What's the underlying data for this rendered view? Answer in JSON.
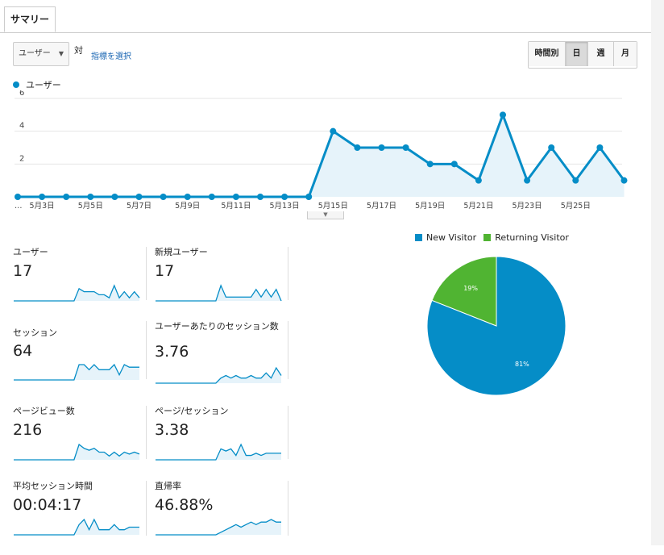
{
  "tabs": {
    "summary": "サマリー"
  },
  "toolbar": {
    "metric_select": "ユーザー",
    "vs": "対",
    "choose_metric": "指標を選択",
    "ranges": [
      "時間別",
      "日",
      "週",
      "月"
    ],
    "active_range": "日"
  },
  "colors": {
    "line": "#058dc7",
    "new_visitor": "#058dc7",
    "returning_visitor": "#50b432"
  },
  "chart_data": [
    {
      "type": "area",
      "series": [
        {
          "name": "ユーザー",
          "values": [
            0,
            0,
            0,
            0,
            0,
            0,
            0,
            0,
            0,
            0,
            0,
            0,
            0,
            4,
            3,
            3,
            3,
            2,
            2,
            1,
            5,
            1,
            3,
            1,
            3,
            1
          ]
        }
      ],
      "x_tick_labels": [
        "…",
        "5月3日",
        "5月5日",
        "5月7日",
        "5月9日",
        "5月11日",
        "5月13日",
        "5月15日",
        "5月17日",
        "5月19日",
        "5月21日",
        "5月23日",
        "5月25日"
      ],
      "y_ticks": [
        "2",
        "4",
        "6"
      ],
      "ylim": [
        0,
        6
      ],
      "grid": true,
      "legend": "top-left"
    },
    {
      "type": "pie",
      "labels": [
        "New Visitor",
        "Returning Visitor"
      ],
      "values": [
        81,
        19
      ],
      "slice_labels": [
        "81%",
        "19%"
      ],
      "legend": "top"
    }
  ],
  "metrics": [
    {
      "label": "ユーザー",
      "value": "17",
      "spark": [
        0,
        0,
        0,
        0,
        0,
        0,
        0,
        0,
        0,
        0,
        0,
        0,
        0,
        4,
        3,
        3,
        3,
        2,
        2,
        1,
        5,
        1,
        3,
        1,
        3,
        1
      ]
    },
    {
      "label": "新規ユーザー",
      "value": "17",
      "spark": [
        0,
        0,
        0,
        0,
        0,
        0,
        0,
        0,
        0,
        0,
        0,
        0,
        0,
        4,
        1,
        1,
        1,
        1,
        1,
        1,
        3,
        1,
        3,
        1,
        3,
        0
      ]
    },
    {
      "label": "セッション",
      "value": "64",
      "spark": [
        0,
        0,
        0,
        0,
        0,
        0,
        0,
        0,
        0,
        0,
        0,
        0,
        0,
        3,
        3,
        2,
        3,
        2,
        2,
        2,
        3,
        1,
        3,
        2.5,
        2.5,
        2.5
      ]
    },
    {
      "label": "ユーザーあたりのセッション数",
      "value": "3.76",
      "spark": [
        0,
        0,
        0,
        0,
        0,
        0,
        0,
        0,
        0,
        0,
        0,
        0,
        0,
        1,
        1.5,
        1,
        1.5,
        1,
        1,
        1.5,
        1,
        1,
        2,
        1,
        3,
        1.5
      ]
    },
    {
      "label": "ページビュー数",
      "value": "216",
      "spark": [
        0,
        0,
        0,
        0,
        0,
        0,
        0,
        0,
        0,
        0,
        0,
        0,
        0,
        4,
        3,
        2.5,
        3,
        2,
        2,
        1,
        2,
        1,
        2,
        1.5,
        2,
        1.5
      ]
    },
    {
      "label": "ページ/セッション",
      "value": "3.38",
      "spark": [
        0,
        0,
        0,
        0,
        0,
        0,
        0,
        0,
        0,
        0,
        0,
        0,
        0,
        2.5,
        2,
        2.5,
        1,
        3.5,
        1,
        1,
        1.5,
        1,
        1.5,
        1.5,
        1.5,
        1.5
      ]
    },
    {
      "label": "平均セッション時間",
      "value": "00:04:17",
      "spark": [
        0,
        0,
        0,
        0,
        0,
        0,
        0,
        0,
        0,
        0,
        0,
        0,
        0,
        2,
        3,
        1,
        3,
        1,
        1,
        1,
        2,
        1,
        1,
        1.5,
        1.5,
        1.5
      ]
    },
    {
      "label": "直帰率",
      "value": "46.88%",
      "spark": [
        0,
        0,
        0,
        0,
        0,
        0,
        0,
        0,
        0,
        0,
        0,
        0,
        0,
        0.5,
        1,
        1.5,
        2,
        1.5,
        2,
        2.5,
        2,
        2.5,
        2.5,
        3,
        2.5,
        2.5
      ]
    }
  ]
}
